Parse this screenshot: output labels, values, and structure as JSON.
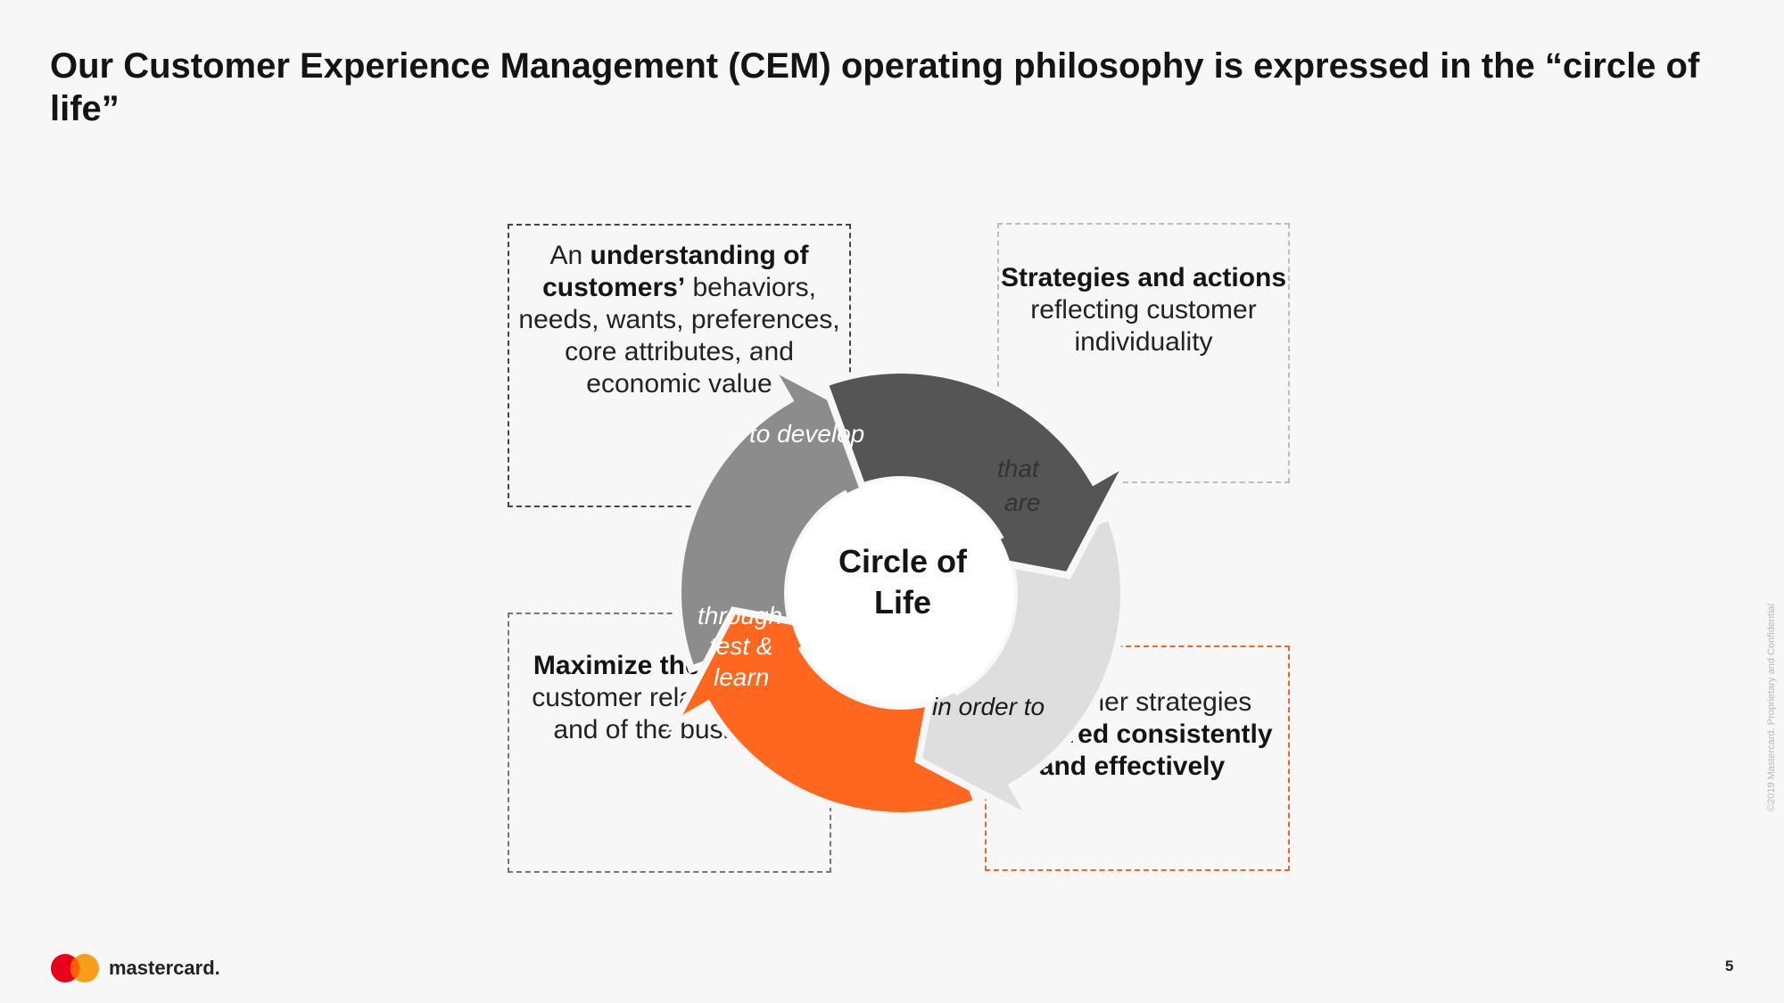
{
  "title": "Our Customer Experience Management (CEM) operating philosophy is expressed in the “circle of life”",
  "boxes": {
    "top_left": {
      "t1": "An ",
      "b1": "understanding of customers’",
      "t2": " behaviors, needs, wants, preferences, core attributes, and economic value"
    },
    "top_right": {
      "b1": "Strategies and actions",
      "t1": " reflecting customer individuality"
    },
    "bottom_left": {
      "b1": "Maximize the value",
      "t1": " of customer relationships, and of the business"
    },
    "bottom_right": {
      "t1": "Customer strategies ",
      "b1": "delivered consistently and effectively"
    }
  },
  "cycle": {
    "center_line1": "Circle of",
    "center_line2": "Life",
    "labels": {
      "to_develop": "to develop",
      "that_are_1": "that",
      "that_are_2": "are",
      "in_order_to": "in order to",
      "through_1": "through",
      "through_2": "test &",
      "through_3": "learn"
    },
    "colors": {
      "dark": "#555555",
      "light": "#dedede",
      "orange": "#ff671f",
      "mid": "#8c8c8c"
    }
  },
  "footer": {
    "brand": "mastercard.",
    "page_number": "5",
    "copyright": "©2019 Mastercard. Proprietary and Confidential"
  }
}
